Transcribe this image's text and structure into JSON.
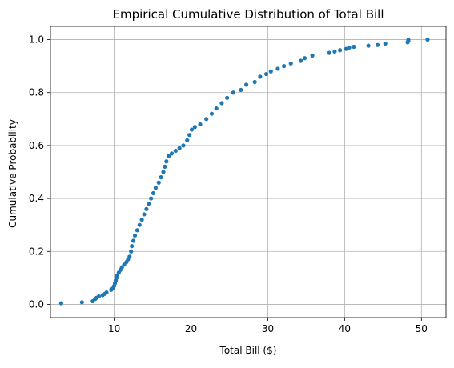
{
  "chart_data": {
    "type": "scatter",
    "title": "Empirical Cumulative Distribution of Total Bill",
    "xlabel": "Total Bill ($)",
    "ylabel": "Cumulative Probability",
    "xlim": [
      1.7,
      53.2
    ],
    "ylim": [
      -0.05,
      1.05
    ],
    "xticks": [
      10,
      20,
      30,
      40,
      50
    ],
    "yticks": [
      0.0,
      0.2,
      0.4,
      0.6,
      0.8,
      1.0
    ],
    "xtick_labels": [
      "10",
      "20",
      "30",
      "40",
      "50"
    ],
    "ytick_labels": [
      "0.0",
      "0.2",
      "0.4",
      "0.6",
      "0.8",
      "1.0"
    ],
    "grid": true,
    "marker_color": "#1f77b4",
    "points": [
      [
        3.1,
        0.004
      ],
      [
        5.8,
        0.008
      ],
      [
        7.2,
        0.012
      ],
      [
        7.5,
        0.02
      ],
      [
        7.7,
        0.025
      ],
      [
        8.0,
        0.03
      ],
      [
        8.5,
        0.035
      ],
      [
        8.8,
        0.04
      ],
      [
        9.0,
        0.045
      ],
      [
        9.6,
        0.055
      ],
      [
        9.8,
        0.06
      ],
      [
        10.0,
        0.07
      ],
      [
        10.1,
        0.08
      ],
      [
        10.2,
        0.09
      ],
      [
        10.3,
        0.1
      ],
      [
        10.4,
        0.11
      ],
      [
        10.6,
        0.12
      ],
      [
        10.8,
        0.13
      ],
      [
        11.0,
        0.14
      ],
      [
        11.3,
        0.15
      ],
      [
        11.6,
        0.16
      ],
      [
        11.8,
        0.17
      ],
      [
        12.0,
        0.18
      ],
      [
        12.2,
        0.2
      ],
      [
        12.3,
        0.22
      ],
      [
        12.5,
        0.24
      ],
      [
        12.7,
        0.26
      ],
      [
        13.0,
        0.28
      ],
      [
        13.3,
        0.3
      ],
      [
        13.6,
        0.32
      ],
      [
        13.9,
        0.34
      ],
      [
        14.2,
        0.36
      ],
      [
        14.5,
        0.38
      ],
      [
        14.8,
        0.4
      ],
      [
        15.1,
        0.42
      ],
      [
        15.4,
        0.44
      ],
      [
        15.8,
        0.46
      ],
      [
        16.1,
        0.48
      ],
      [
        16.4,
        0.5
      ],
      [
        16.6,
        0.52
      ],
      [
        16.8,
        0.54
      ],
      [
        17.1,
        0.56
      ],
      [
        17.5,
        0.57
      ],
      [
        18.0,
        0.58
      ],
      [
        18.5,
        0.59
      ],
      [
        19.0,
        0.6
      ],
      [
        19.5,
        0.62
      ],
      [
        19.8,
        0.64
      ],
      [
        20.1,
        0.66
      ],
      [
        20.5,
        0.67
      ],
      [
        21.2,
        0.68
      ],
      [
        22.0,
        0.7
      ],
      [
        22.7,
        0.72
      ],
      [
        23.3,
        0.74
      ],
      [
        24.0,
        0.76
      ],
      [
        24.7,
        0.78
      ],
      [
        25.5,
        0.8
      ],
      [
        26.5,
        0.81
      ],
      [
        27.2,
        0.83
      ],
      [
        28.3,
        0.84
      ],
      [
        29.0,
        0.86
      ],
      [
        29.8,
        0.87
      ],
      [
        30.4,
        0.88
      ],
      [
        31.3,
        0.89
      ],
      [
        32.1,
        0.9
      ],
      [
        33.0,
        0.91
      ],
      [
        34.3,
        0.92
      ],
      [
        34.8,
        0.93
      ],
      [
        35.8,
        0.94
      ],
      [
        38.0,
        0.95
      ],
      [
        38.7,
        0.955
      ],
      [
        39.4,
        0.96
      ],
      [
        40.2,
        0.965
      ],
      [
        40.6,
        0.97
      ],
      [
        41.2,
        0.973
      ],
      [
        43.1,
        0.977
      ],
      [
        44.3,
        0.98
      ],
      [
        45.3,
        0.985
      ],
      [
        48.2,
        0.99
      ],
      [
        48.3,
        0.995
      ],
      [
        48.3,
        0.999
      ],
      [
        50.8,
        1.0
      ]
    ]
  }
}
